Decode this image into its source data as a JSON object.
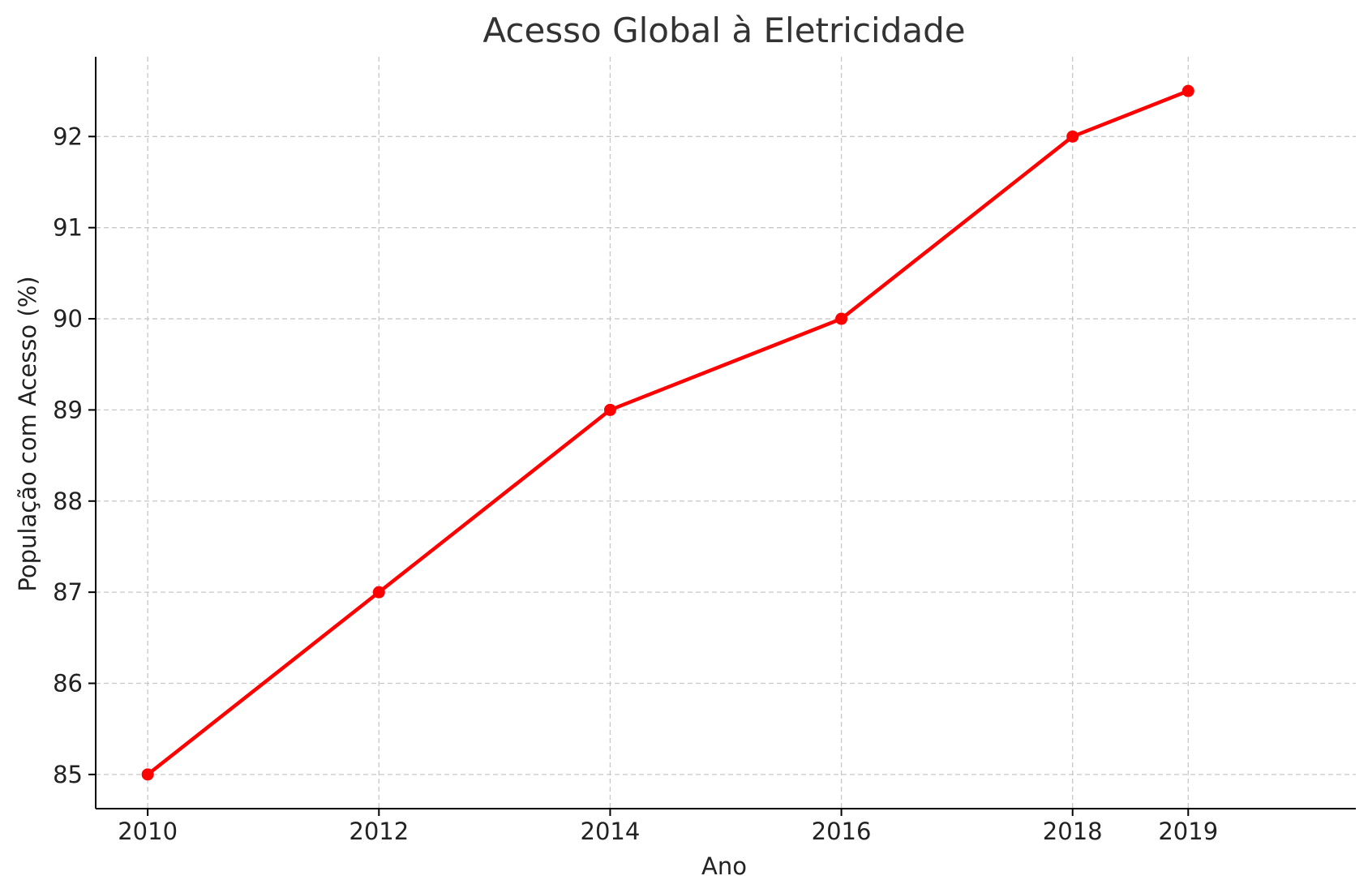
{
  "colors": {
    "line": "#ff0000",
    "grid": "#c8c8c8",
    "axis": "#000000",
    "title": "#333333",
    "text": "#222222"
  },
  "chart_data": {
    "type": "line",
    "title": "Acesso Global à Eletricidade",
    "xlabel": "Ano",
    "ylabel": "População com Acesso (%)",
    "x": [
      2010,
      2012,
      2014,
      2016,
      2018,
      2019
    ],
    "series": [
      {
        "values": [
          85,
          87,
          89,
          90,
          92,
          92.5
        ],
        "color": "#ff0000",
        "marker": "circle"
      }
    ],
    "xticks": [
      "2010",
      "2012",
      "2014",
      "2016",
      "2018",
      "2019"
    ],
    "yticks": [
      "85",
      "86",
      "87",
      "88",
      "89",
      "90",
      "91",
      "92"
    ],
    "xlim": [
      2009.55,
      2020.45
    ],
    "ylim": [
      84.625,
      92.875
    ],
    "grid": true,
    "legend": "none"
  }
}
